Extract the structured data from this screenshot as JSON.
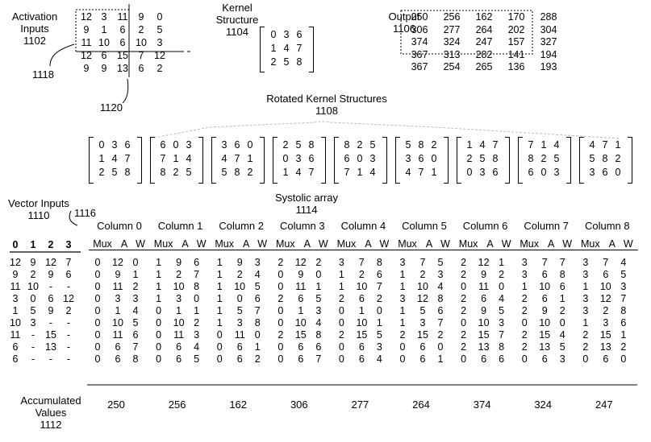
{
  "activation": {
    "label": "Activation\nInputs\n1102",
    "rows": [
      [
        "12",
        "3",
        "11",
        "9",
        "0"
      ],
      [
        "9",
        "1",
        "6",
        "2",
        "5"
      ],
      [
        "11",
        "10",
        "6",
        "10",
        "3"
      ],
      [
        "12",
        "6",
        "15",
        "7",
        "12"
      ],
      [
        "9",
        "9",
        "13",
        "6",
        "2"
      ]
    ],
    "ref_1118": "1118",
    "ref_1120": "1120"
  },
  "kernel": {
    "label": "Kernel\nStructure\n1104",
    "rows": [
      [
        "0",
        "3",
        "6"
      ],
      [
        "1",
        "4",
        "7"
      ],
      [
        "2",
        "5",
        "8"
      ]
    ]
  },
  "output": {
    "label": "Output\n1106",
    "rows": [
      [
        "250",
        "256",
        "162",
        "170",
        "288"
      ],
      [
        "306",
        "277",
        "264",
        "202",
        "304"
      ],
      [
        "374",
        "324",
        "247",
        "157",
        "327"
      ],
      [
        "367",
        "313",
        "282",
        "141",
        "194"
      ],
      [
        "367",
        "254",
        "265",
        "136",
        "193"
      ]
    ]
  },
  "rotated": {
    "label": "Rotated Kernel Structures\n1108",
    "kernels": [
      [
        [
          "0",
          "3",
          "6"
        ],
        [
          "1",
          "4",
          "7"
        ],
        [
          "2",
          "5",
          "8"
        ]
      ],
      [
        [
          "6",
          "0",
          "3"
        ],
        [
          "7",
          "1",
          "4"
        ],
        [
          "8",
          "2",
          "5"
        ]
      ],
      [
        [
          "3",
          "6",
          "0"
        ],
        [
          "4",
          "7",
          "1"
        ],
        [
          "5",
          "8",
          "2"
        ]
      ],
      [
        [
          "2",
          "5",
          "8"
        ],
        [
          "0",
          "3",
          "6"
        ],
        [
          "1",
          "4",
          "7"
        ]
      ],
      [
        [
          "8",
          "2",
          "5"
        ],
        [
          "6",
          "0",
          "3"
        ],
        [
          "7",
          "1",
          "4"
        ]
      ],
      [
        [
          "5",
          "8",
          "2"
        ],
        [
          "3",
          "6",
          "0"
        ],
        [
          "4",
          "7",
          "1"
        ]
      ],
      [
        [
          "1",
          "4",
          "7"
        ],
        [
          "2",
          "5",
          "8"
        ],
        [
          "0",
          "3",
          "6"
        ]
      ],
      [
        [
          "7",
          "1",
          "4"
        ],
        [
          "8",
          "2",
          "5"
        ],
        [
          "6",
          "0",
          "3"
        ]
      ],
      [
        [
          "4",
          "7",
          "1"
        ],
        [
          "5",
          "8",
          "2"
        ],
        [
          "3",
          "6",
          "0"
        ]
      ]
    ]
  },
  "systolic": {
    "label": "Systolic array\n1114",
    "ref_1116": "1116"
  },
  "vector": {
    "label": "Vector Inputs\n1110",
    "headers": [
      "0",
      "1",
      "2",
      "3"
    ],
    "rows": [
      [
        "12",
        "9",
        "12",
        "7"
      ],
      [
        "9",
        "2",
        "9",
        "6"
      ],
      [
        "11",
        "10",
        "-",
        "-"
      ],
      [
        "3",
        "0",
        "6",
        "12"
      ],
      [
        "1",
        "5",
        "9",
        "2"
      ],
      [
        "10",
        "3",
        "-",
        "-"
      ],
      [
        "11",
        "-",
        "15",
        "-"
      ],
      [
        "6",
        "-",
        "13",
        "-"
      ],
      [
        "6",
        "-",
        "-",
        "-"
      ]
    ]
  },
  "columns": [
    {
      "title": "Column 0",
      "rows": [
        [
          "0",
          "12",
          "0"
        ],
        [
          "0",
          "9",
          "1"
        ],
        [
          "0",
          "11",
          "2"
        ],
        [
          "0",
          "3",
          "3"
        ],
        [
          "0",
          "1",
          "4"
        ],
        [
          "0",
          "10",
          "5"
        ],
        [
          "0",
          "11",
          "6"
        ],
        [
          "0",
          "6",
          "7"
        ],
        [
          "0",
          "6",
          "8"
        ]
      ],
      "acc": "250"
    },
    {
      "title": "Column 1",
      "rows": [
        [
          "1",
          "9",
          "6"
        ],
        [
          "1",
          "2",
          "7"
        ],
        [
          "1",
          "10",
          "8"
        ],
        [
          "1",
          "3",
          "0"
        ],
        [
          "0",
          "1",
          "1"
        ],
        [
          "0",
          "10",
          "2"
        ],
        [
          "0",
          "11",
          "3"
        ],
        [
          "0",
          "6",
          "4"
        ],
        [
          "0",
          "6",
          "5"
        ]
      ],
      "acc": "256"
    },
    {
      "title": "Column 2",
      "rows": [
        [
          "1",
          "9",
          "3"
        ],
        [
          "1",
          "2",
          "4"
        ],
        [
          "1",
          "10",
          "5"
        ],
        [
          "1",
          "0",
          "6"
        ],
        [
          "1",
          "5",
          "7"
        ],
        [
          "1",
          "3",
          "8"
        ],
        [
          "0",
          "11",
          "0"
        ],
        [
          "0",
          "6",
          "1"
        ],
        [
          "0",
          "6",
          "2"
        ]
      ],
      "acc": "162"
    },
    {
      "title": "Column 3",
      "rows": [
        [
          "2",
          "12",
          "2"
        ],
        [
          "0",
          "9",
          "0"
        ],
        [
          "0",
          "11",
          "1"
        ],
        [
          "2",
          "6",
          "5"
        ],
        [
          "0",
          "1",
          "3"
        ],
        [
          "0",
          "10",
          "4"
        ],
        [
          "2",
          "15",
          "8"
        ],
        [
          "0",
          "6",
          "6"
        ],
        [
          "0",
          "6",
          "7"
        ]
      ],
      "acc": "306"
    },
    {
      "title": "Column 4",
      "rows": [
        [
          "3",
          "7",
          "8"
        ],
        [
          "1",
          "2",
          "6"
        ],
        [
          "1",
          "10",
          "7"
        ],
        [
          "2",
          "6",
          "2"
        ],
        [
          "0",
          "1",
          "0"
        ],
        [
          "0",
          "10",
          "1"
        ],
        [
          "2",
          "15",
          "5"
        ],
        [
          "0",
          "6",
          "3"
        ],
        [
          "0",
          "6",
          "4"
        ]
      ],
      "acc": "277"
    },
    {
      "title": "Column 5",
      "rows": [
        [
          "3",
          "7",
          "5"
        ],
        [
          "1",
          "2",
          "3"
        ],
        [
          "1",
          "10",
          "4"
        ],
        [
          "3",
          "12",
          "8"
        ],
        [
          "1",
          "5",
          "6"
        ],
        [
          "1",
          "3",
          "7"
        ],
        [
          "2",
          "15",
          "2"
        ],
        [
          "0",
          "6",
          "0"
        ],
        [
          "0",
          "6",
          "1"
        ]
      ],
      "acc": "264"
    },
    {
      "title": "Column 6",
      "rows": [
        [
          "2",
          "12",
          "1"
        ],
        [
          "2",
          "9",
          "2"
        ],
        [
          "0",
          "11",
          "0"
        ],
        [
          "2",
          "6",
          "4"
        ],
        [
          "2",
          "9",
          "5"
        ],
        [
          "0",
          "10",
          "3"
        ],
        [
          "2",
          "15",
          "7"
        ],
        [
          "2",
          "13",
          "8"
        ],
        [
          "0",
          "6",
          "6"
        ]
      ],
      "acc": "374"
    },
    {
      "title": "Column 7",
      "rows": [
        [
          "3",
          "7",
          "7"
        ],
        [
          "3",
          "6",
          "8"
        ],
        [
          "1",
          "10",
          "6"
        ],
        [
          "2",
          "6",
          "1"
        ],
        [
          "2",
          "9",
          "2"
        ],
        [
          "0",
          "10",
          "0"
        ],
        [
          "2",
          "15",
          "4"
        ],
        [
          "2",
          "13",
          "5"
        ],
        [
          "0",
          "6",
          "3"
        ]
      ],
      "acc": "324"
    },
    {
      "title": "Column 8",
      "rows": [
        [
          "3",
          "7",
          "4"
        ],
        [
          "3",
          "6",
          "5"
        ],
        [
          "1",
          "10",
          "3"
        ],
        [
          "3",
          "12",
          "7"
        ],
        [
          "3",
          "2",
          "8"
        ],
        [
          "1",
          "3",
          "6"
        ],
        [
          "2",
          "15",
          "1"
        ],
        [
          "2",
          "13",
          "2"
        ],
        [
          "0",
          "6",
          "0"
        ]
      ],
      "acc": "247"
    }
  ],
  "subheads": [
    "Mux",
    "A",
    "W"
  ],
  "accumulated_label": "Accumulated\nValues\n1112"
}
